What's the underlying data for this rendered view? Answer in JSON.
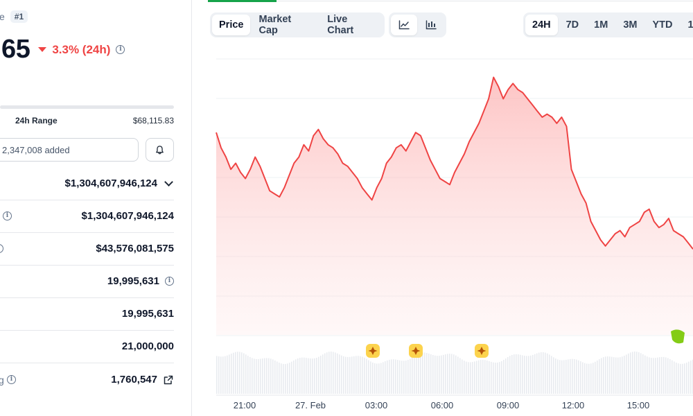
{
  "header": {
    "title_fragment": "ce",
    "rank": "#1",
    "price": ".65",
    "change": "3.3% (24h)",
    "change_color": "#ef4444"
  },
  "range": {
    "label": "24h Range",
    "high": "$68,115.83"
  },
  "watchlist": {
    "text": "2,347,008 added"
  },
  "stats": {
    "market_cap_dropdown": "$1,304,607,946,124",
    "market_cap": "$1,304,607,946,124",
    "volume": "$43,576,081,575",
    "circulating_supply": "19,995,631",
    "total_supply": "19,995,631",
    "max_supply": "21,000,000",
    "holders": "1,760,547"
  },
  "tabs": [
    "Price",
    "Market Cap",
    "Live Chart"
  ],
  "active_tab": "Price",
  "ranges": [
    "24H",
    "7D",
    "1M",
    "3M",
    "YTD",
    "1"
  ],
  "active_range": "24H",
  "icons": [
    "line-chart-icon",
    "candlestick-chart-icon",
    "bell-icon",
    "external-link-icon",
    "info-icon",
    "star-event-icon"
  ],
  "chart_data": {
    "type": "area",
    "x_ticks": [
      "21:00",
      "27. Feb",
      "03:00",
      "06:00",
      "09:00",
      "12:00",
      "15:00"
    ],
    "series": [
      {
        "color": "#ef4444",
        "values": [
          196,
          191,
          188,
          184,
          186,
          183,
          181,
          184,
          188,
          185,
          181,
          177,
          176,
          175,
          178,
          182,
          186,
          188,
          192,
          190,
          195,
          197,
          194,
          192,
          191,
          189,
          186,
          185,
          183,
          181,
          178,
          176,
          174,
          178,
          181,
          186,
          188,
          191,
          192,
          190,
          193,
          196,
          195,
          191,
          187,
          184,
          181,
          180,
          179,
          183,
          186,
          189,
          193,
          196,
          199,
          203,
          207,
          214,
          211,
          207,
          210,
          212,
          210,
          209,
          207,
          205,
          203,
          201,
          202,
          201,
          199,
          201,
          198,
          184,
          180,
          176,
          173,
          167,
          164,
          161,
          159,
          161,
          163,
          164,
          162,
          165,
          166,
          167,
          170,
          171,
          167,
          165,
          166,
          168,
          164,
          163,
          162,
          160,
          158
        ]
      }
    ],
    "events": 3
  }
}
